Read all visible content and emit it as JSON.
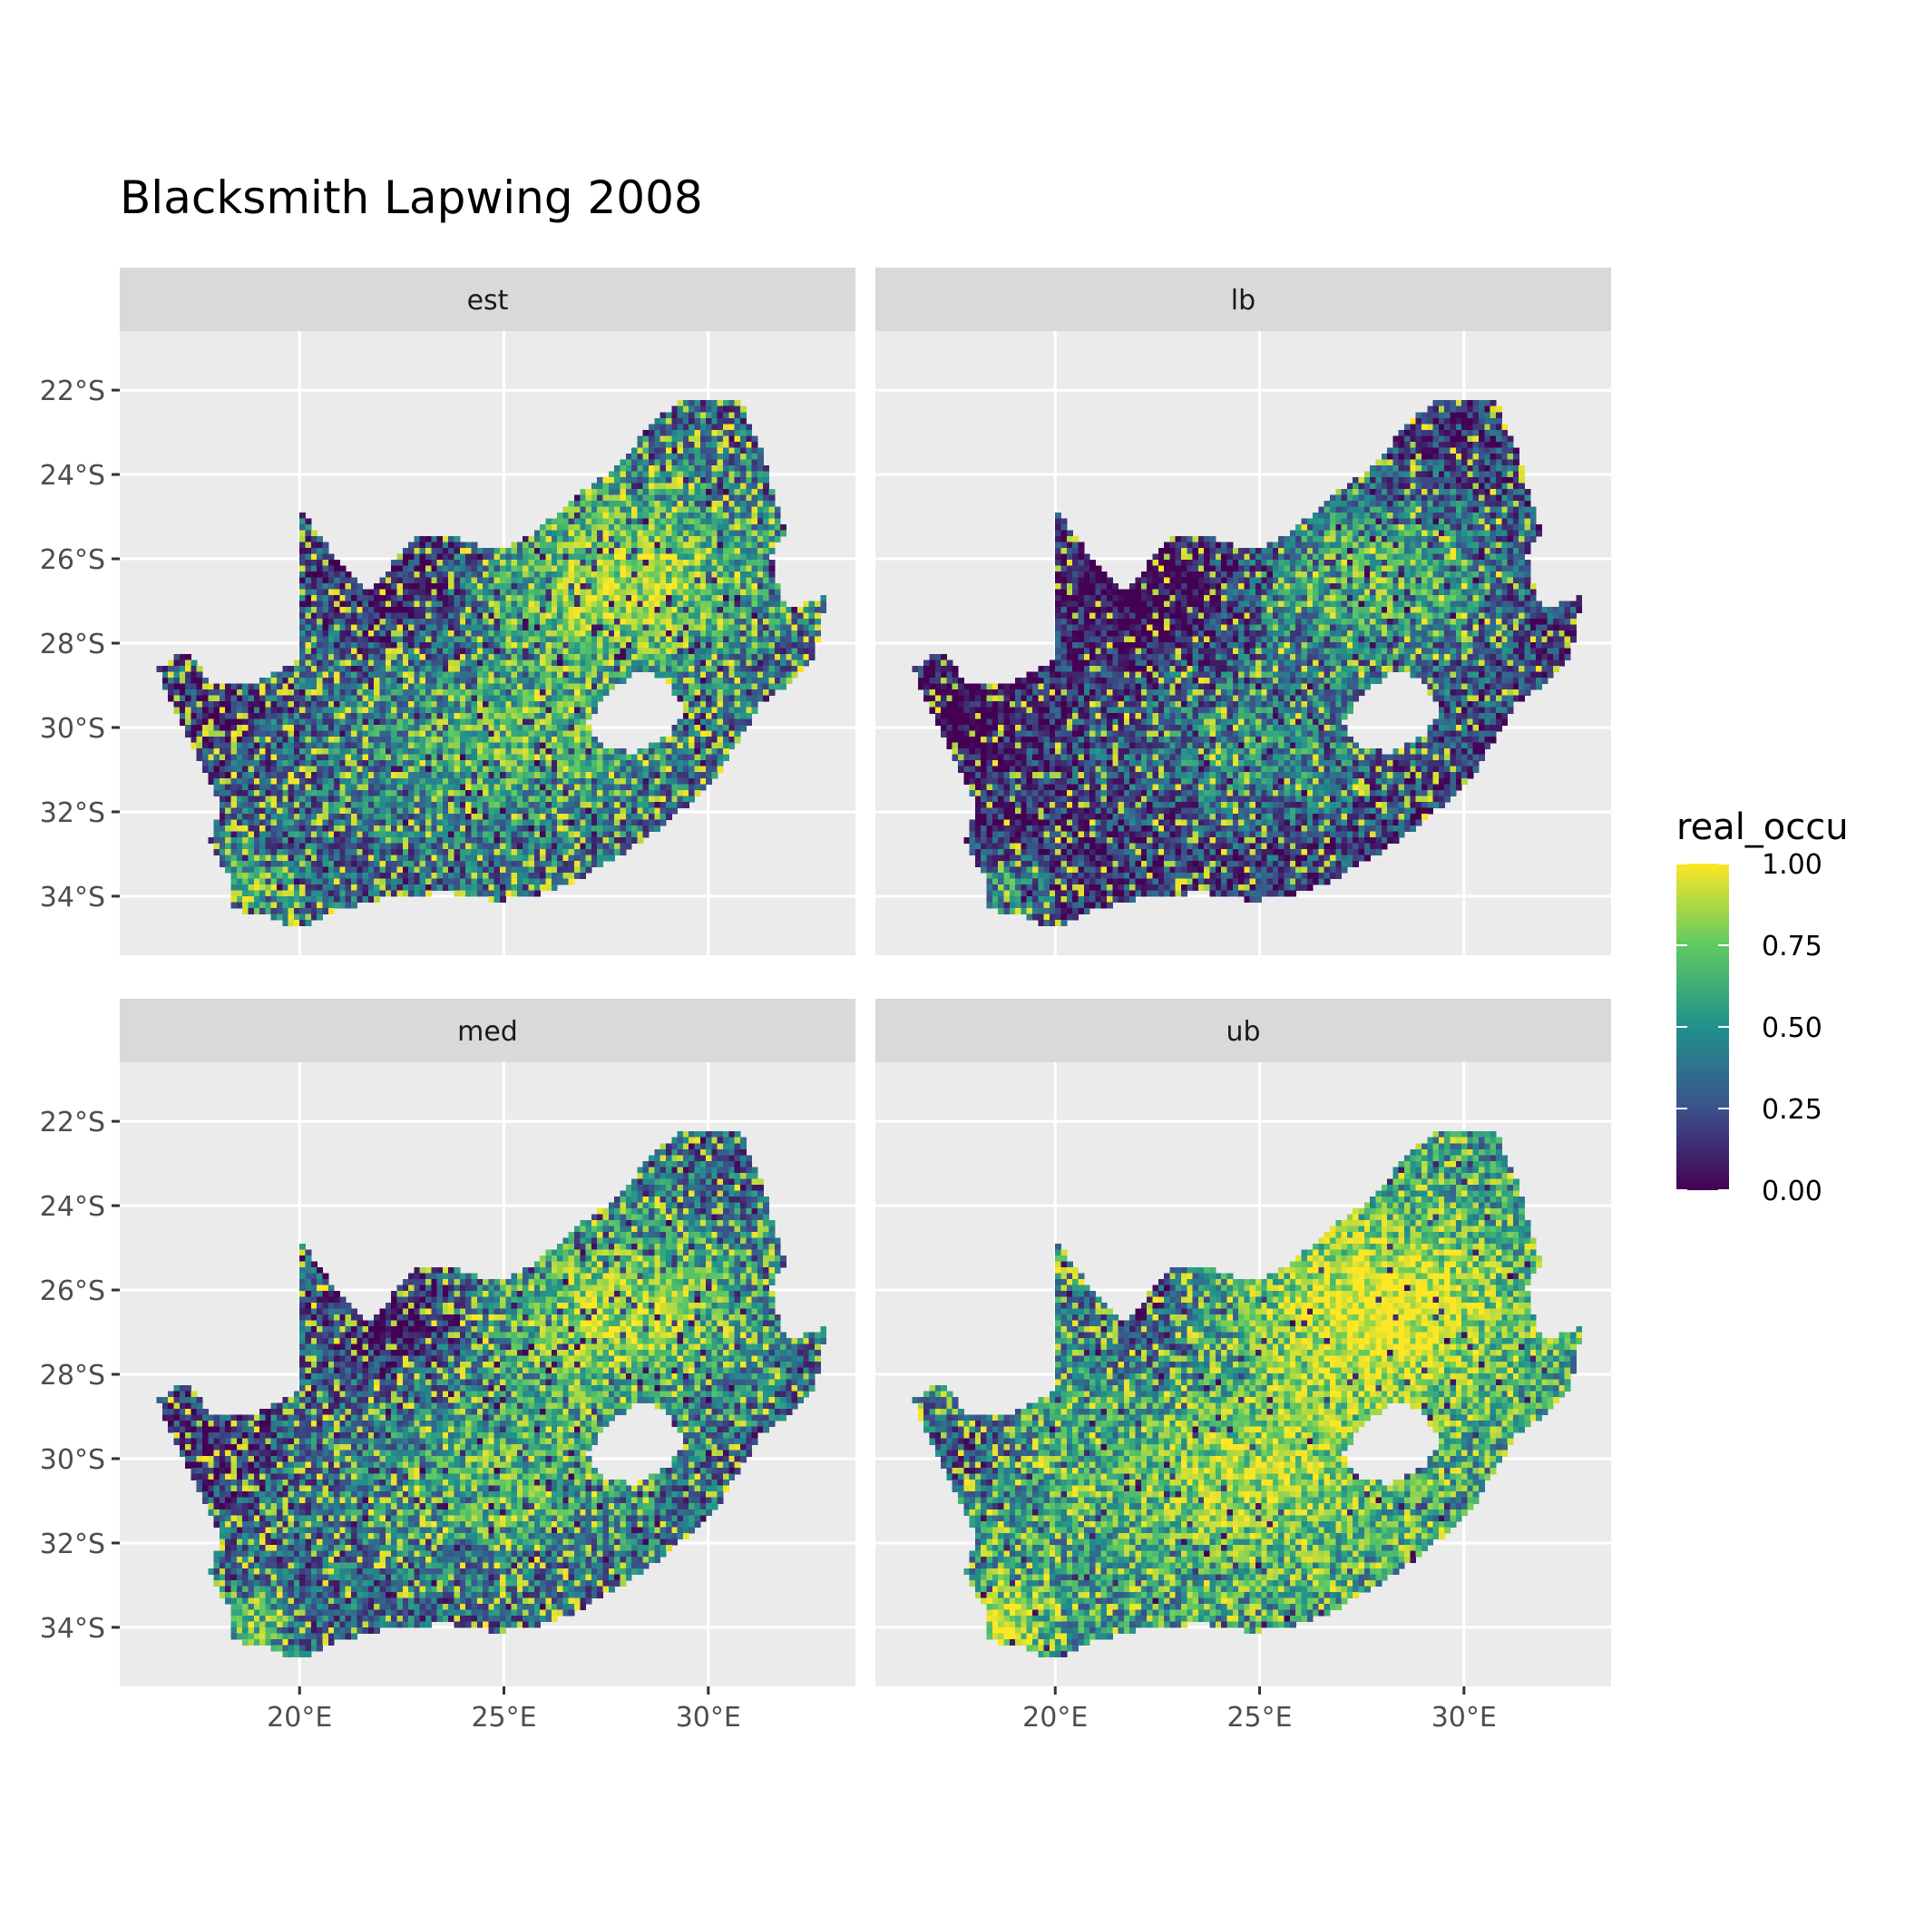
{
  "title": "Blacksmith Lapwing 2008",
  "chart_data": {
    "type": "heatmap",
    "title": "Blacksmith Lapwing 2008",
    "facets": [
      {
        "label": "est",
        "low_share": 0.32,
        "high_share": 0.42
      },
      {
        "label": "lb",
        "low_share": 0.48,
        "high_share": 0.3
      },
      {
        "label": "med",
        "low_share": 0.33,
        "high_share": 0.42
      },
      {
        "label": "ub",
        "low_share": 0.14,
        "high_share": 0.55
      }
    ],
    "x_axis": {
      "ticks": [
        20,
        25,
        30
      ],
      "tick_labels": [
        "20°E",
        "25°E",
        "30°E"
      ],
      "range": [
        15.6,
        33.6
      ]
    },
    "y_axis": {
      "ticks": [
        -22,
        -24,
        -26,
        -28,
        -30,
        -32,
        -34
      ],
      "tick_labels": [
        "22°S",
        "24°S",
        "26°S",
        "28°S",
        "30°S",
        "32°S",
        "34°S"
      ],
      "range": [
        -35.4,
        -20.6
      ]
    },
    "legend": {
      "title": "real_occu",
      "placement": "right",
      "ticks": [
        1.0,
        0.75,
        0.5,
        0.25,
        0.0
      ],
      "tick_labels": [
        "1.00",
        "0.75",
        "0.50",
        "0.25",
        "0.00"
      ],
      "range": [
        0,
        1
      ],
      "palette": "viridis",
      "colors": [
        "#440154",
        "#3b528b",
        "#21918c",
        "#5ec962",
        "#fde725"
      ]
    },
    "grid": true
  }
}
